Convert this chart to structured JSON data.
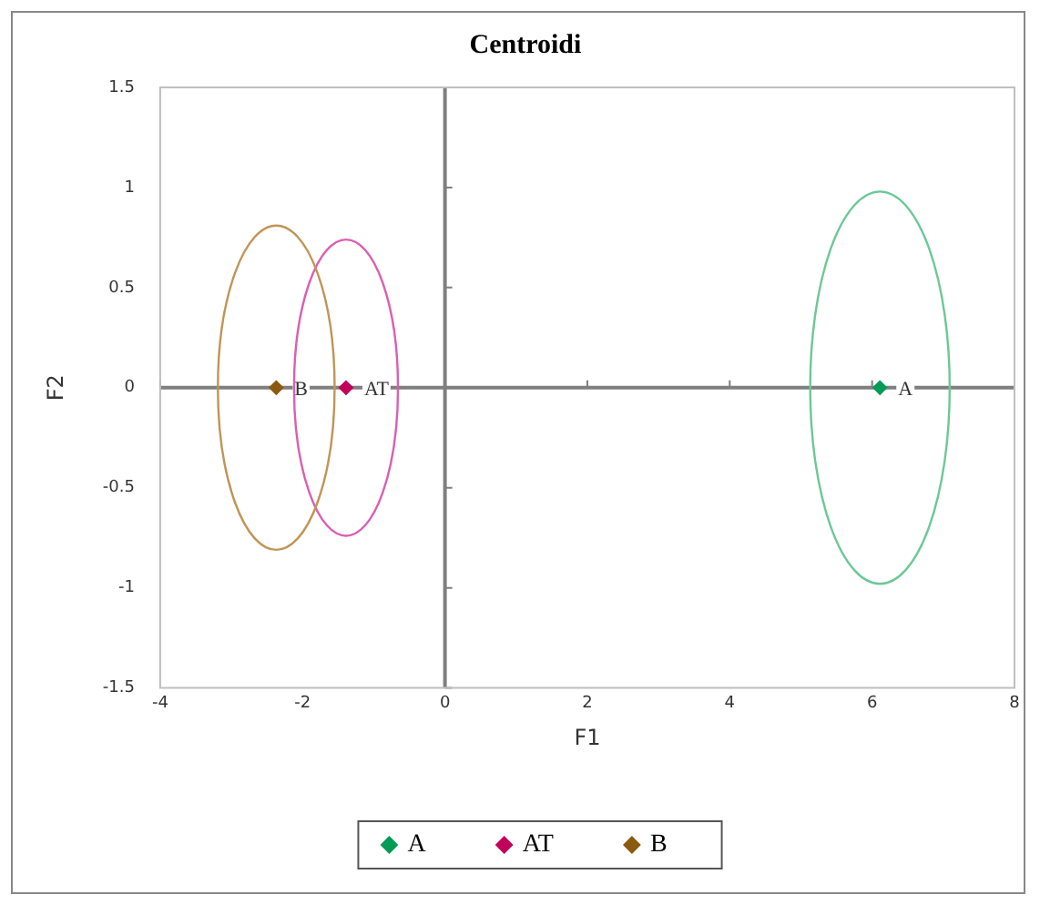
{
  "chart_data": {
    "type": "scatter",
    "title": "Centroidi",
    "xlabel": "F1",
    "ylabel": "F2",
    "xlim": [
      -4,
      8
    ],
    "xticks": [
      -4,
      -2,
      0,
      2,
      4,
      6,
      8
    ],
    "ylim": [
      -1.5,
      1.5
    ],
    "yticks": [
      -1.5,
      -1,
      -0.5,
      0,
      0.5,
      1,
      1.5
    ],
    "marker": "diamond",
    "legend": "bottom",
    "series": [
      {
        "name": "A",
        "type": "scatter",
        "color": "#009b55",
        "x": [
          6.11
        ],
        "values": [
          0
        ]
      },
      {
        "name": "AT",
        "type": "scatter",
        "color": "#c0005a",
        "x": [
          -1.39
        ],
        "values": [
          0
        ]
      },
      {
        "name": "B",
        "type": "scatter",
        "color": "#8b5a10",
        "x": [
          -2.37
        ],
        "values": [
          0
        ]
      }
    ],
    "annotations": [
      {
        "text": "A",
        "x": 6.11,
        "y": 0
      },
      {
        "text": "AT",
        "x": -1.39,
        "y": 0
      },
      {
        "text": "B",
        "x": -2.37,
        "y": 0
      }
    ]
  }
}
